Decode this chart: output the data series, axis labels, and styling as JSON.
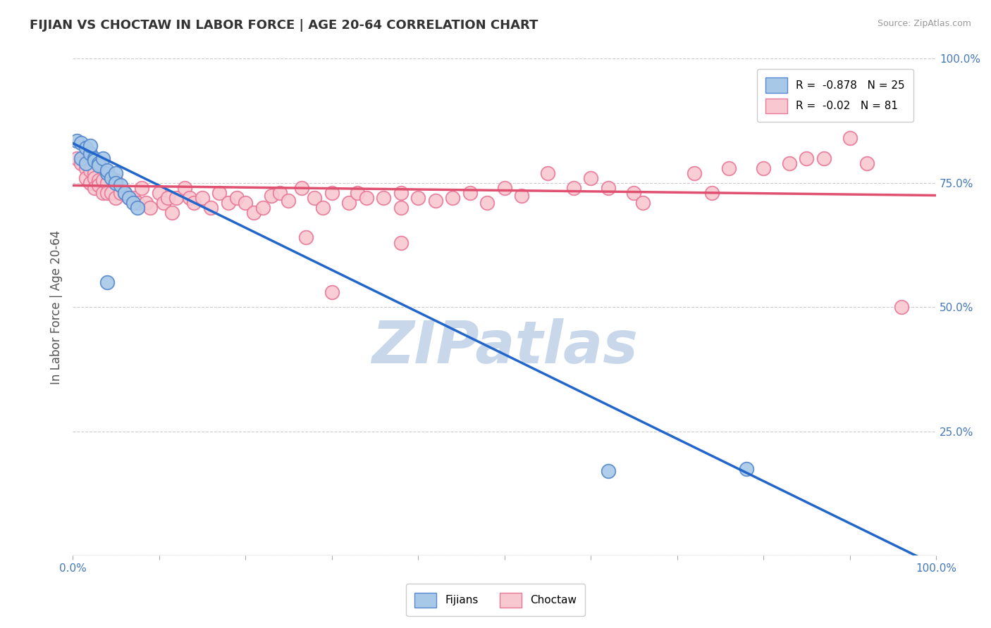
{
  "title": "FIJIAN VS CHOCTAW IN LABOR FORCE | AGE 20-64 CORRELATION CHART",
  "source": "Source: ZipAtlas.com",
  "ylabel": "In Labor Force | Age 20-64",
  "xlim": [
    0.0,
    1.0
  ],
  "ylim": [
    0.0,
    1.0
  ],
  "fijian_color": "#a8c8e8",
  "fijian_edge": "#5588cc",
  "choctaw_color": "#f8c8d0",
  "choctaw_edge": "#e87898",
  "blue_line_color": "#2266cc",
  "pink_line_color": "#e05070",
  "R_fijian": -0.878,
  "N_fijian": 25,
  "R_choctaw": -0.02,
  "N_choctaw": 81,
  "fijian_x": [
    0.005,
    0.01,
    0.01,
    0.015,
    0.015,
    0.02,
    0.02,
    0.025,
    0.025,
    0.03,
    0.03,
    0.035,
    0.04,
    0.04,
    0.045,
    0.05,
    0.05,
    0.055,
    0.06,
    0.065,
    0.07,
    0.075,
    0.04,
    0.62,
    0.78
  ],
  "fijian_y": [
    0.835,
    0.83,
    0.8,
    0.82,
    0.79,
    0.81,
    0.825,
    0.8,
    0.795,
    0.79,
    0.785,
    0.8,
    0.77,
    0.775,
    0.76,
    0.77,
    0.75,
    0.745,
    0.73,
    0.72,
    0.71,
    0.7,
    0.55,
    0.17,
    0.175
  ],
  "choctaw_x": [
    0.005,
    0.01,
    0.015,
    0.015,
    0.02,
    0.02,
    0.025,
    0.025,
    0.025,
    0.03,
    0.03,
    0.035,
    0.035,
    0.04,
    0.04,
    0.045,
    0.05,
    0.05,
    0.055,
    0.06,
    0.065,
    0.07,
    0.075,
    0.08,
    0.085,
    0.09,
    0.1,
    0.105,
    0.11,
    0.115,
    0.12,
    0.13,
    0.135,
    0.14,
    0.15,
    0.16,
    0.17,
    0.18,
    0.19,
    0.2,
    0.21,
    0.22,
    0.23,
    0.24,
    0.25,
    0.265,
    0.28,
    0.29,
    0.3,
    0.32,
    0.33,
    0.34,
    0.36,
    0.38,
    0.38,
    0.4,
    0.42,
    0.44,
    0.46,
    0.48,
    0.5,
    0.52,
    0.55,
    0.58,
    0.6,
    0.62,
    0.65,
    0.66,
    0.72,
    0.74,
    0.76,
    0.8,
    0.83,
    0.85,
    0.87,
    0.9,
    0.38,
    0.27,
    0.3,
    0.92,
    0.96
  ],
  "choctaw_y": [
    0.8,
    0.79,
    0.78,
    0.76,
    0.775,
    0.75,
    0.77,
    0.76,
    0.74,
    0.755,
    0.745,
    0.755,
    0.73,
    0.75,
    0.73,
    0.73,
    0.755,
    0.72,
    0.73,
    0.73,
    0.72,
    0.72,
    0.71,
    0.74,
    0.71,
    0.7,
    0.73,
    0.71,
    0.72,
    0.69,
    0.72,
    0.74,
    0.72,
    0.71,
    0.72,
    0.7,
    0.73,
    0.71,
    0.72,
    0.71,
    0.69,
    0.7,
    0.725,
    0.73,
    0.715,
    0.74,
    0.72,
    0.7,
    0.73,
    0.71,
    0.73,
    0.72,
    0.72,
    0.73,
    0.7,
    0.72,
    0.715,
    0.72,
    0.73,
    0.71,
    0.74,
    0.725,
    0.77,
    0.74,
    0.76,
    0.74,
    0.73,
    0.71,
    0.77,
    0.73,
    0.78,
    0.78,
    0.79,
    0.8,
    0.8,
    0.84,
    0.63,
    0.64,
    0.53,
    0.79,
    0.5
  ],
  "blue_line_x": [
    0.0,
    1.0
  ],
  "blue_line_y": [
    0.83,
    -0.02
  ],
  "pink_line_x": [
    0.0,
    1.0
  ],
  "pink_line_y": [
    0.745,
    0.725
  ],
  "watermark": "ZIPatlas",
  "watermark_color": "#c8d8ea",
  "background_color": "#ffffff",
  "grid_color": "#cccccc",
  "axis_label_color": "#4477bb",
  "title_color": "#333333"
}
